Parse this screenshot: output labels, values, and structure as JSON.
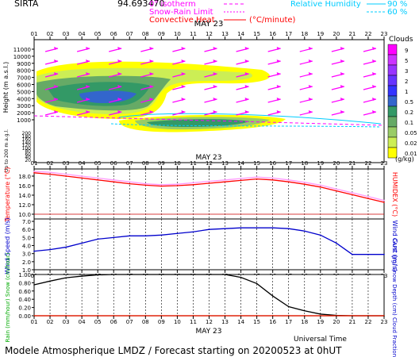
{
  "header": {
    "station": "SIRTA",
    "coords": "94.693470",
    "legend_isotherm": "0° isotherm",
    "legend_snowrain": "Snow-Rain Limit",
    "legend_convective": "Convective Heat",
    "legend_convective_unit": "(°C/minute)",
    "legend_rh": "Relative Humidity",
    "legend_rh_90": "90 %",
    "legend_rh_60": "60 %",
    "colors": {
      "isotherm": "#ff00ff",
      "snowrain": "#ff00ff",
      "convective": "#ff0000",
      "rh": "#00ccff"
    }
  },
  "footer": {
    "universal_time": "Universal Time",
    "model_line": "Modele Atmospherique LMDZ / Forecast starting on 20200523 at 0hUT"
  },
  "hours": [
    "01",
    "02",
    "03",
    "04",
    "05",
    "06",
    "07",
    "08",
    "09",
    "10",
    "11",
    "12",
    "13",
    "14",
    "15",
    "16",
    "17",
    "18",
    "19",
    "20",
    "21",
    "22",
    "23"
  ],
  "date_label": "MAY 23",
  "chart_data": [
    {
      "type": "heatmap",
      "title": "",
      "ylabel": "Height (m a.s.l.)",
      "ylabel_low": "Up to 200 m a.g.l.",
      "y_ticks_upper": [
        "11000",
        "10000",
        "9000",
        "8000",
        "7000",
        "6000",
        "5000",
        "4000",
        "3000",
        "2000",
        "1000"
      ],
      "y_ticks_lower": [
        "200",
        "180",
        "160",
        "140",
        "120",
        "100",
        "80",
        "60",
        "40",
        "20"
      ],
      "colorbar": {
        "title": "Clouds",
        "unit": "(g/kg)",
        "levels": [
          "9",
          "5",
          "3",
          "2",
          "1",
          "0.5",
          "0.2",
          "0.1",
          "0.05",
          "0.02",
          "0.01"
        ],
        "colors": [
          "#ff00ff",
          "#cc33ff",
          "#9933ff",
          "#6633ff",
          "#3333ff",
          "#3366cc",
          "#339966",
          "#66aa66",
          "#99cc66",
          "#ccee55",
          "#ffff00"
        ]
      },
      "wind_vectors": "magenta arrows pointing east-north-east at all heights",
      "isotherm_height_m": 1500
    },
    {
      "type": "line",
      "ylabel_left": "Temperature (°C)",
      "ylabel_right": "HUMIDEX (°C)",
      "y_ticks": [
        "18.0",
        "16.0",
        "14.0",
        "12.0",
        "10.0"
      ],
      "ylim": [
        9,
        19.5
      ],
      "series": [
        {
          "name": "Temperature",
          "color": "#ff0000",
          "values": [
            18.7,
            18.4,
            18.0,
            17.6,
            17.2,
            16.8,
            16.4,
            16.1,
            15.9,
            16.0,
            16.2,
            16.5,
            16.8,
            17.1,
            17.4,
            17.2,
            16.8,
            16.3,
            15.7,
            14.9,
            14.1,
            13.3,
            12.5
          ]
        },
        {
          "name": "Humidex",
          "color": "#ff99ff",
          "values": [
            19.0,
            18.8,
            18.4,
            18.0,
            17.6,
            17.2,
            16.8,
            16.4,
            16.2,
            16.3,
            16.6,
            16.9,
            17.2,
            17.5,
            17.8,
            17.6,
            17.2,
            16.7,
            16.1,
            15.3,
            14.5,
            13.7,
            12.9
          ]
        }
      ],
      "reference_line": 10.0
    },
    {
      "type": "line",
      "ylabel_left": "Wind Speed (m/s)",
      "ylabel_right": "Wind Gust (m/s)",
      "y_ticks": [
        "7.0",
        "6.0",
        "5.0",
        "4.0",
        "3.0",
        "2.0",
        "1.0"
      ],
      "ylim": [
        1.0,
        7.3
      ],
      "series": [
        {
          "name": "Wind Speed",
          "color": "#0000cc",
          "values": [
            3.3,
            3.5,
            3.8,
            4.3,
            4.8,
            5.0,
            5.2,
            5.2,
            5.3,
            5.5,
            5.7,
            6.0,
            6.1,
            6.2,
            6.2,
            6.2,
            6.1,
            5.8,
            5.3,
            4.3,
            2.9,
            2.9,
            2.9
          ]
        }
      ]
    },
    {
      "type": "line",
      "ylabel_left": "Rain (mm/hour) Snow (cm/hour)",
      "ylabel_right": "CAPE (J/g) Snow Depth (cm) Cloud Fraction",
      "y_ticks": [
        "1.00",
        "0.80",
        "0.60",
        "0.40",
        "0.20",
        "0.00"
      ],
      "ylim": [
        0,
        1.0
      ],
      "series": [
        {
          "name": "Cloud Fraction",
          "color": "#000000",
          "values": [
            0.75,
            0.84,
            0.92,
            0.96,
            0.99,
            1.0,
            1.0,
            1.0,
            1.0,
            1.0,
            1.0,
            1.0,
            1.0,
            0.93,
            0.78,
            0.48,
            0.22,
            0.12,
            0.04,
            0.01,
            0.0,
            0.0,
            0.0
          ]
        },
        {
          "name": "Rain",
          "color": "#00cc00",
          "values": [
            0,
            0,
            0,
            0,
            0,
            0,
            0,
            0,
            0,
            0,
            0,
            0,
            0,
            0,
            0,
            0,
            0,
            0,
            0,
            0,
            0,
            0,
            0
          ]
        },
        {
          "name": "CAPE",
          "color": "#ff0000",
          "values": [
            0,
            0,
            0,
            0,
            0,
            0,
            0,
            0,
            0,
            0,
            0,
            0,
            0,
            0,
            0,
            0,
            0,
            0,
            0,
            0,
            0,
            0,
            0
          ]
        }
      ]
    }
  ]
}
